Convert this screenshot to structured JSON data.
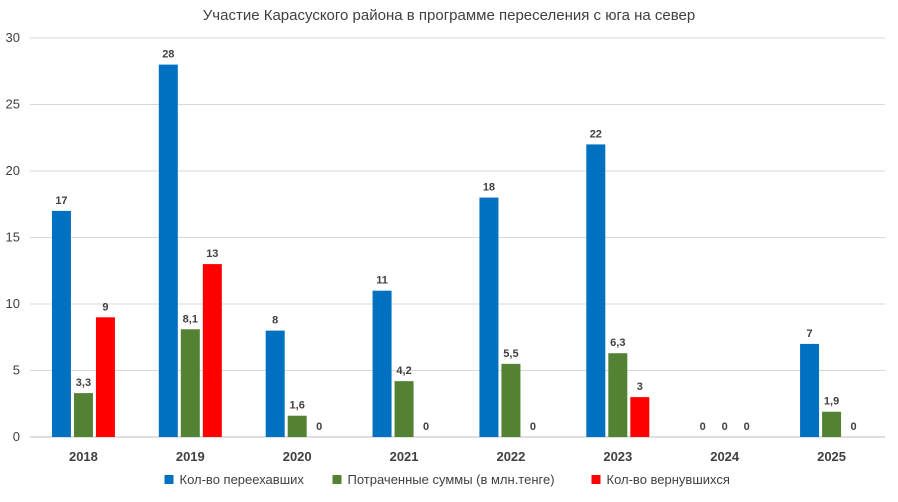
{
  "chart_data": {
    "type": "bar",
    "title": "Участие Карасуского района в программе переселения с юга на север",
    "xlabel": "",
    "ylabel": "",
    "ylim": [
      0,
      30
    ],
    "yticks": [
      0,
      5,
      10,
      15,
      20,
      25,
      30
    ],
    "grid": true,
    "legend_position": "bottom",
    "categories": [
      "2018",
      "2019",
      "2020",
      "2021",
      "2022",
      "2023",
      "2024",
      "2025"
    ],
    "series": [
      {
        "name": "Кол-во переехавших",
        "color": "#0070c0",
        "values": [
          17,
          28,
          8,
          11,
          18,
          22,
          0,
          7
        ],
        "labels": [
          "17",
          "28",
          "8",
          "11",
          "18",
          "22",
          "0",
          "7"
        ]
      },
      {
        "name": "Потраченные суммы (в млн.тенге)",
        "color": "#548235",
        "values": [
          3.3,
          8.1,
          1.6,
          4.2,
          5.5,
          6.3,
          0,
          1.9
        ],
        "labels": [
          "3,3",
          "8,1",
          "1,6",
          "4,2",
          "5,5",
          "6,3",
          "0",
          "1,9"
        ]
      },
      {
        "name": "Кол-во вернувшихся",
        "color": "#ff0000",
        "values": [
          9,
          13,
          0,
          0,
          0,
          3,
          0,
          0
        ],
        "labels": [
          "9",
          "13",
          "0",
          "0",
          "0",
          "3",
          "0",
          "0"
        ]
      }
    ]
  }
}
